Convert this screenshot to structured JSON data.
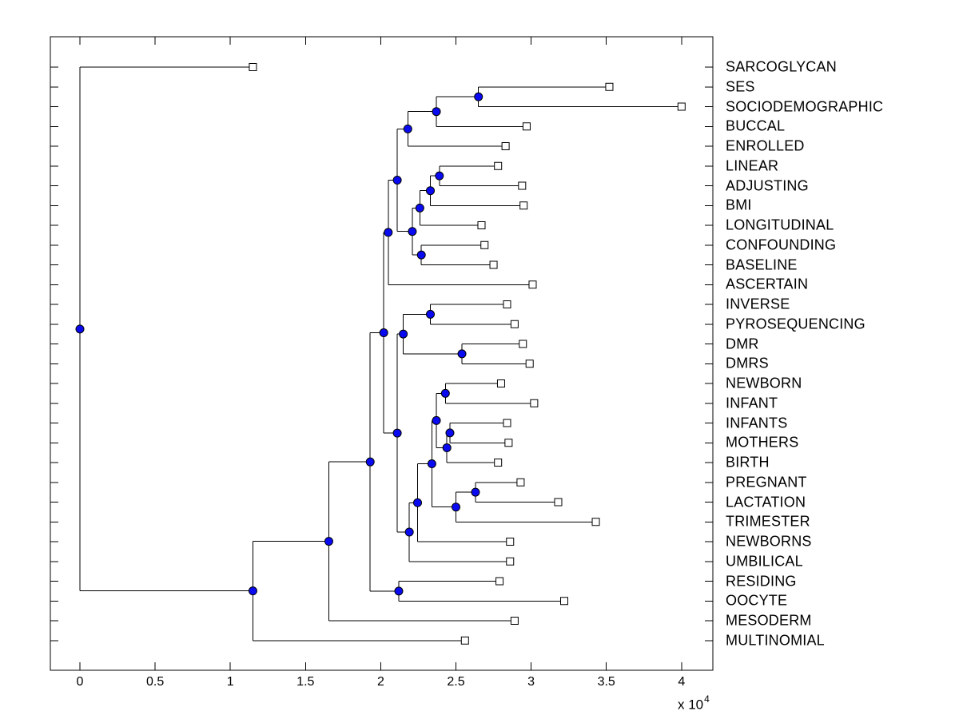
{
  "figure": {
    "background": "#ffffff"
  },
  "chart_data": {
    "type": "dendrogram",
    "orientation": "horizontal-left-to-right",
    "title": "",
    "xlabel": "",
    "ylabel": "",
    "grid": false,
    "x_axis": {
      "xlim": [
        -2000,
        42100
      ],
      "tick_values": [
        0,
        5000,
        10000,
        15000,
        20000,
        25000,
        30000,
        35000,
        40000
      ],
      "tick_labels": [
        "0",
        "0.5",
        "1",
        "1.5",
        "2",
        "2.5",
        "3",
        "3.5",
        "4"
      ],
      "multiplier_text": "x 10",
      "multiplier_exponent": "4"
    },
    "leaf_order": [
      "SARCOGLYCAN",
      "SES",
      "SOCIODEMOGRAPHIC",
      "BUCCAL",
      "ENROLLED",
      "LINEAR",
      "ADJUSTING",
      "BMI",
      "LONGITUDINAL",
      "CONFOUNDING",
      "BASELINE",
      "ASCERTAIN",
      "INVERSE",
      "PYROSEQUENCING",
      "DMR",
      "DMRS",
      "NEWBORN",
      "INFANT",
      "INFANTS",
      "MOTHERS",
      "BIRTH",
      "PREGNANT",
      "LACTATION",
      "TRIMESTER",
      "NEWBORNS",
      "UMBILICAL",
      "RESIDING",
      "OOCYTE",
      "MESODERM",
      "MULTINOMIAL"
    ],
    "colors": {
      "line": "#000000",
      "internal_node_fill": "#0a0af0",
      "internal_node_edge": "#000000",
      "leaf_marker_fill": "#ffffff",
      "leaf_marker_edge": "#000000",
      "axis": "#000000",
      "text": "#000000"
    },
    "tree": {
      "x": 0,
      "children": [
        {
          "name": "SARCOGLYCAN",
          "x": 11500
        },
        {
          "x": 11500,
          "children": [
            {
              "x": 16550,
              "children": [
                {
                  "x": 19300,
                  "children": [
                    {
                      "x": 20200,
                      "children": [
                        {
                          "x": 20500,
                          "children": [
                            {
                              "x": 21100,
                              "children": [
                                {
                                  "x": 21800,
                                  "children": [
                                    {
                                      "x": 23700,
                                      "children": [
                                        {
                                          "x": 26500,
                                          "children": [
                                            {
                                              "name": "SES",
                                              "x": 35200
                                            },
                                            {
                                              "name": "SOCIODEMOGRAPHIC",
                                              "x": 40000
                                            }
                                          ]
                                        },
                                        {
                                          "name": "BUCCAL",
                                          "x": 29700
                                        }
                                      ]
                                    },
                                    {
                                      "name": "ENROLLED",
                                      "x": 28300
                                    }
                                  ]
                                },
                                {
                                  "x": 22100,
                                  "children": [
                                    {
                                      "x": 22600,
                                      "children": [
                                        {
                                          "x": 23300,
                                          "children": [
                                            {
                                              "x": 23900,
                                              "children": [
                                                {
                                                  "name": "LINEAR",
                                                  "x": 27800
                                                },
                                                {
                                                  "name": "ADJUSTING",
                                                  "x": 29400
                                                }
                                              ]
                                            },
                                            {
                                              "name": "BMI",
                                              "x": 29500
                                            }
                                          ]
                                        },
                                        {
                                          "name": "LONGITUDINAL",
                                          "x": 26700
                                        }
                                      ]
                                    },
                                    {
                                      "x": 22700,
                                      "children": [
                                        {
                                          "name": "CONFOUNDING",
                                          "x": 26900
                                        },
                                        {
                                          "name": "BASELINE",
                                          "x": 27500
                                        }
                                      ]
                                    }
                                  ]
                                }
                              ]
                            },
                            {
                              "name": "ASCERTAIN",
                              "x": 30100
                            }
                          ]
                        },
                        {
                          "x": 21100,
                          "children": [
                            {
                              "x": 21500,
                              "children": [
                                {
                                  "x": 23300,
                                  "children": [
                                    {
                                      "name": "INVERSE",
                                      "x": 28400
                                    },
                                    {
                                      "name": "PYROSEQUENCING",
                                      "x": 28900
                                    }
                                  ]
                                },
                                {
                                  "x": 25400,
                                  "children": [
                                    {
                                      "name": "DMR",
                                      "x": 29450
                                    },
                                    {
                                      "name": "DMRS",
                                      "x": 29900
                                    }
                                  ]
                                }
                              ]
                            },
                            {
                              "x": 21900,
                              "children": [
                                {
                                  "x": 22450,
                                  "children": [
                                    {
                                      "x": 23400,
                                      "children": [
                                        {
                                          "x": 23700,
                                          "children": [
                                            {
                                              "x": 24300,
                                              "children": [
                                                {
                                                  "name": "NEWBORN",
                                                  "x": 28000
                                                },
                                                {
                                                  "name": "INFANT",
                                                  "x": 30200
                                                }
                                              ]
                                            },
                                            {
                                              "x": 24400,
                                              "children": [
                                                {
                                                  "x": 24600,
                                                  "children": [
                                                    {
                                                      "name": "INFANTS",
                                                      "x": 28400
                                                    },
                                                    {
                                                      "name": "MOTHERS",
                                                      "x": 28500
                                                    }
                                                  ]
                                                },
                                                {
                                                  "name": "BIRTH",
                                                  "x": 27800
                                                }
                                              ]
                                            }
                                          ]
                                        },
                                        {
                                          "x": 25000,
                                          "children": [
                                            {
                                              "x": 26300,
                                              "children": [
                                                {
                                                  "name": "PREGNANT",
                                                  "x": 29300
                                                },
                                                {
                                                  "name": "LACTATION",
                                                  "x": 31800
                                                }
                                              ]
                                            },
                                            {
                                              "name": "TRIMESTER",
                                              "x": 34300
                                            }
                                          ]
                                        }
                                      ]
                                    },
                                    {
                                      "name": "NEWBORNS",
                                      "x": 28600
                                    }
                                  ]
                                },
                                {
                                  "name": "UMBILICAL",
                                  "x": 28600
                                }
                              ]
                            }
                          ]
                        }
                      ]
                    },
                    {
                      "x": 21200,
                      "children": [
                        {
                          "name": "RESIDING",
                          "x": 27900
                        },
                        {
                          "name": "OOCYTE",
                          "x": 32200
                        }
                      ]
                    }
                  ]
                },
                {
                  "name": "MESODERM",
                  "x": 28900
                }
              ]
            },
            {
              "name": "MULTINOMIAL",
              "x": 25600
            }
          ]
        }
      ]
    }
  }
}
